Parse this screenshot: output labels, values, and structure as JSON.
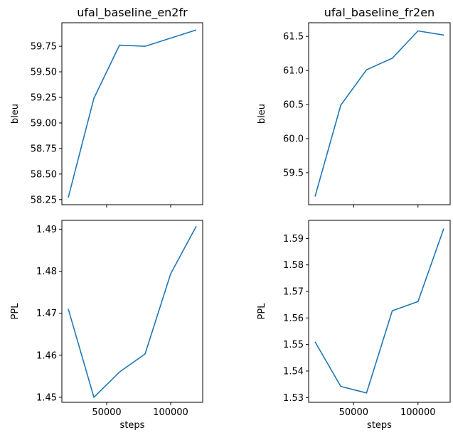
{
  "chart_data": [
    {
      "type": "line",
      "title": "ufal_baseline_en2fr",
      "xlabel": "",
      "ylabel": "bleu",
      "x": [
        20000,
        40000,
        60000,
        80000,
        100000,
        120000
      ],
      "y": [
        58.27,
        59.24,
        59.76,
        59.75,
        59.83,
        59.91
      ],
      "xlim": [
        15000,
        125000
      ],
      "ylim": [
        58.2,
        59.98
      ],
      "xticks": [
        50000,
        100000
      ],
      "xticklabels": [
        "",
        ""
      ],
      "yticks": [
        58.25,
        58.5,
        58.75,
        59.0,
        59.25,
        59.5,
        59.75
      ],
      "yticklabels": [
        "58.25",
        "58.50",
        "58.75",
        "59.00",
        "59.25",
        "59.50",
        "59.75"
      ],
      "grid": false
    },
    {
      "type": "line",
      "title": "ufal_baseline_fr2en",
      "xlabel": "",
      "ylabel": "bleu",
      "x": [
        20000,
        40000,
        60000,
        80000,
        100000,
        120000
      ],
      "y": [
        59.15,
        60.49,
        61.01,
        61.18,
        61.58,
        61.52
      ],
      "xlim": [
        15000,
        125000
      ],
      "ylim": [
        59.03,
        61.7
      ],
      "xticks": [
        50000,
        100000
      ],
      "xticklabels": [
        "",
        ""
      ],
      "yticks": [
        59.5,
        60.0,
        60.5,
        61.0,
        61.5
      ],
      "yticklabels": [
        "59.5",
        "60.0",
        "60.5",
        "61.0",
        "61.5"
      ],
      "grid": false
    },
    {
      "type": "line",
      "title": "",
      "xlabel": "steps",
      "ylabel": "PPL",
      "x": [
        20000,
        40000,
        60000,
        80000,
        100000,
        120000
      ],
      "y": [
        1.471,
        1.45,
        1.456,
        1.4603,
        1.4794,
        1.4907
      ],
      "xlim": [
        15000,
        125000
      ],
      "ylim": [
        1.4488,
        1.4921
      ],
      "xticks": [
        50000,
        100000
      ],
      "xticklabels": [
        "50000",
        "100000"
      ],
      "yticks": [
        1.45,
        1.46,
        1.47,
        1.48,
        1.49
      ],
      "yticklabels": [
        "1.45",
        "1.46",
        "1.47",
        "1.48",
        "1.49"
      ],
      "grid": false
    },
    {
      "type": "line",
      "title": "",
      "xlabel": "steps",
      "ylabel": "PPL",
      "x": [
        20000,
        40000,
        60000,
        80000,
        100000,
        120000
      ],
      "y": [
        1.551,
        1.5342,
        1.5317,
        1.5627,
        1.5662,
        1.5937
      ],
      "xlim": [
        15000,
        125000
      ],
      "ylim": [
        1.5282,
        1.5968
      ],
      "xticks": [
        50000,
        100000
      ],
      "xticklabels": [
        "50000",
        "100000"
      ],
      "yticks": [
        1.53,
        1.54,
        1.55,
        1.56,
        1.57,
        1.58,
        1.59
      ],
      "yticklabels": [
        "1.53",
        "1.54",
        "1.55",
        "1.56",
        "1.57",
        "1.58",
        "1.59"
      ],
      "grid": false
    }
  ],
  "colors": {
    "line": "#1f77b4"
  }
}
